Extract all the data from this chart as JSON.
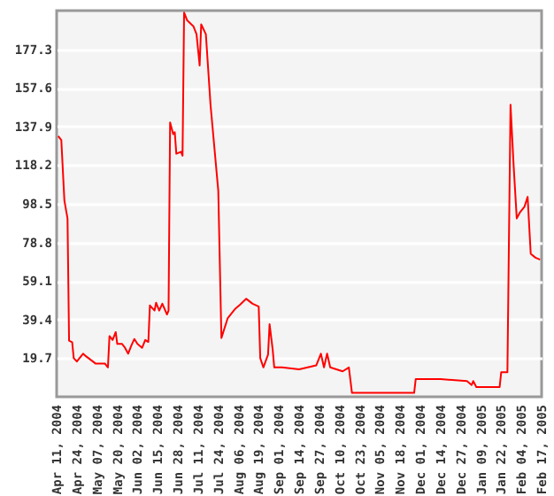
{
  "chart_data": {
    "type": "line",
    "x": [
      "2004-04-12",
      "2004-04-14",
      "2004-04-16",
      "2004-04-18",
      "2004-04-19",
      "2004-04-21",
      "2004-04-22",
      "2004-04-24",
      "2004-04-28",
      "2004-04-30",
      "2004-05-06",
      "2004-05-12",
      "2004-05-14",
      "2004-05-15",
      "2004-05-17",
      "2004-05-19",
      "2004-05-20",
      "2004-05-23",
      "2004-05-25",
      "2004-05-27",
      "2004-05-29",
      "2004-05-31",
      "2004-06-02",
      "2004-06-05",
      "2004-06-07",
      "2004-06-09",
      "2004-06-10",
      "2004-06-13",
      "2004-06-14",
      "2004-06-16",
      "2004-06-18",
      "2004-06-21",
      "2004-06-22",
      "2004-06-23",
      "2004-06-25",
      "2004-06-26",
      "2004-06-27",
      "2004-06-30",
      "2004-07-01",
      "2004-07-02",
      "2004-07-04",
      "2004-07-08",
      "2004-07-10",
      "2004-07-12",
      "2004-07-13",
      "2004-07-16",
      "2004-07-19",
      "2004-07-24",
      "2004-07-26",
      "2004-07-30",
      "2004-08-04",
      "2004-08-07",
      "2004-08-11",
      "2004-08-15",
      "2004-08-19",
      "2004-08-20",
      "2004-08-22",
      "2004-08-25",
      "2004-08-26",
      "2004-08-28",
      "2004-08-29",
      "2004-09-03",
      "2004-09-14",
      "2004-09-25",
      "2004-09-28",
      "2004-09-30",
      "2004-10-02",
      "2004-10-04",
      "2004-10-12",
      "2004-10-16",
      "2004-10-18",
      "2004-11-10",
      "2004-11-27",
      "2004-11-28",
      "2004-12-14",
      "2004-12-31",
      "2005-01-03",
      "2005-01-04",
      "2005-01-06",
      "2005-01-21",
      "2005-01-22",
      "2005-01-26",
      "2005-01-28",
      "2005-01-30",
      "2005-02-01",
      "2005-02-03",
      "2005-02-06",
      "2005-02-08",
      "2005-02-10",
      "2005-02-13",
      "2005-02-16"
    ],
    "series": [
      {
        "color": "#ff0000",
        "values": [
          133,
          131,
          100,
          91,
          28.6,
          27.8,
          19.7,
          18,
          22,
          20.6,
          17,
          17,
          15,
          31,
          29,
          33,
          27,
          27,
          25,
          22,
          26,
          29.5,
          27,
          25,
          29,
          28,
          46.6,
          44,
          48,
          44,
          47.5,
          42,
          44,
          140,
          134,
          135,
          124,
          125,
          123,
          196,
          192,
          189,
          185,
          169,
          190,
          185,
          149,
          105,
          30,
          40,
          45,
          47,
          50,
          47.5,
          46,
          19.7,
          15,
          21.5,
          37,
          24,
          15,
          15,
          14,
          16,
          22,
          15,
          22,
          15,
          13,
          15,
          2,
          2,
          2,
          9,
          9,
          8,
          6,
          8,
          5,
          5,
          12.5,
          12.5,
          149,
          118,
          91,
          94,
          97,
          102,
          73,
          71,
          70
        ]
      }
    ],
    "xlim": [
      "2004-04-11",
      "2005-02-17"
    ],
    "xticks": [
      {
        "value": "2004-04-11",
        "label": "Apr 11, 2004"
      },
      {
        "value": "2004-04-24",
        "label": "Apr 24, 2004"
      },
      {
        "value": "2004-05-07",
        "label": "May 07, 2004"
      },
      {
        "value": "2004-05-20",
        "label": "May 20, 2004"
      },
      {
        "value": "2004-06-02",
        "label": "Jun 02, 2004"
      },
      {
        "value": "2004-06-15",
        "label": "Jun 15, 2004"
      },
      {
        "value": "2004-06-28",
        "label": "Jun 28, 2004"
      },
      {
        "value": "2004-07-11",
        "label": "Jul 11, 2004"
      },
      {
        "value": "2004-07-24",
        "label": "Jul 24, 2004"
      },
      {
        "value": "2004-08-06",
        "label": "Aug 06, 2004"
      },
      {
        "value": "2004-08-19",
        "label": "Aug 19, 2004"
      },
      {
        "value": "2004-09-01",
        "label": "Sep 01, 2004"
      },
      {
        "value": "2004-09-14",
        "label": "Sep 14, 2004"
      },
      {
        "value": "2004-09-27",
        "label": "Sep 27, 2004"
      },
      {
        "value": "2004-10-10",
        "label": "Oct 10, 2004"
      },
      {
        "value": "2004-10-23",
        "label": "Oct 23, 2004"
      },
      {
        "value": "2004-11-05",
        "label": "Nov 05, 2004"
      },
      {
        "value": "2004-11-18",
        "label": "Nov 18, 2004"
      },
      {
        "value": "2004-12-01",
        "label": "Dec 01, 2004"
      },
      {
        "value": "2004-12-14",
        "label": "Dec 14, 2004"
      },
      {
        "value": "2004-12-27",
        "label": "Dec 27, 2004"
      },
      {
        "value": "2005-01-09",
        "label": "Jan 09, 2005"
      },
      {
        "value": "2005-01-22",
        "label": "Jan 22, 2005"
      },
      {
        "value": "2005-02-04",
        "label": "Feb 04, 2005"
      },
      {
        "value": "2005-02-17",
        "label": "Feb 17, 2005"
      }
    ],
    "ylim": [
      0,
      197
    ],
    "yticks": [
      19.7,
      39.4,
      59.1,
      78.8,
      98.5,
      118.2,
      137.9,
      157.6,
      177.3
    ],
    "grid": "y"
  }
}
